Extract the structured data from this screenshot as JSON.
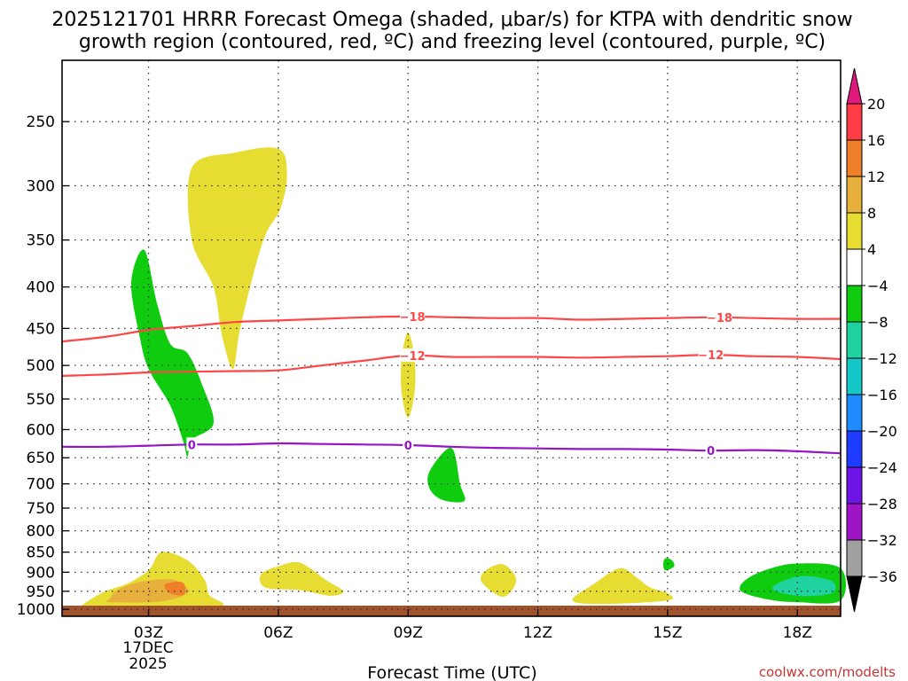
{
  "chart_data": {
    "type": "time-height cross section (filled contour + line contours)",
    "title_line1": "2025121701 HRRR Forecast Omega (shaded, μbar/s) for KTPA with dendritic snow",
    "title_line2": "growth region (contoured, red, ºC) and freezing level (contoured, purple, ºC)",
    "xlabel": "Forecast Time (UTC)",
    "ylabel": "",
    "credit": "coolwx.com/modelts",
    "x_ticks": [
      {
        "hour": 3,
        "label": "03Z"
      },
      {
        "hour": 6,
        "label": "06Z"
      },
      {
        "hour": 9,
        "label": "09Z"
      },
      {
        "hour": 12,
        "label": "12Z"
      },
      {
        "hour": 15,
        "label": "15Z"
      },
      {
        "hour": 18,
        "label": "18Z"
      }
    ],
    "x_sub_labels": [
      "17DEC",
      "2025"
    ],
    "xlim_hours": [
      1,
      19
    ],
    "y_ticks": [
      250,
      300,
      350,
      400,
      450,
      500,
      550,
      600,
      650,
      700,
      750,
      800,
      850,
      900,
      950,
      1000
    ],
    "ylim_hPa": [
      1020,
      210
    ],
    "y_scale": "log-pressure",
    "colorbar": {
      "levels": [
        "20",
        "16",
        "12",
        "8",
        "4",
        "-4",
        "-8",
        "-12",
        "-16",
        "-20",
        "-24",
        "-28",
        "-32",
        "-36"
      ],
      "colors": [
        "#ff3c46",
        "#f07f2a",
        "#e7b03c",
        "#e6dc32",
        "#ffffff",
        "#0fcc0f",
        "#1fd2a0",
        "#14c8c8",
        "#1e8cff",
        "#1e3cff",
        "#6e14e6",
        "#a014c8",
        "#a0a0a0"
      ],
      "top_arrow": "#e01a7c",
      "bottom_arrow": "#000000"
    },
    "contours": [
      {
        "name": "-18 °C isotherm",
        "color": "#ff4646",
        "label": "-18",
        "label_hours": [
          9.1,
          16.2
        ],
        "points": [
          [
            1,
            467
          ],
          [
            2,
            461
          ],
          [
            3,
            452
          ],
          [
            4,
            447
          ],
          [
            5,
            442
          ],
          [
            6,
            440
          ],
          [
            7,
            438
          ],
          [
            8,
            436
          ],
          [
            9,
            435
          ],
          [
            10,
            436
          ],
          [
            11,
            437
          ],
          [
            12,
            437
          ],
          [
            13,
            439
          ],
          [
            14,
            438
          ],
          [
            15,
            437
          ],
          [
            16,
            436
          ],
          [
            17,
            437
          ],
          [
            18,
            438
          ],
          [
            19,
            438
          ]
        ]
      },
      {
        "name": "-12 °C isotherm",
        "color": "#ff4646",
        "label": "-12",
        "label_hours": [
          9.1,
          16.0
        ],
        "points": [
          [
            1,
            515
          ],
          [
            2,
            513
          ],
          [
            3,
            510
          ],
          [
            4,
            509
          ],
          [
            5,
            508
          ],
          [
            6,
            507
          ],
          [
            7,
            500
          ],
          [
            8,
            493
          ],
          [
            9,
            486
          ],
          [
            10,
            488
          ],
          [
            11,
            488
          ],
          [
            12,
            488
          ],
          [
            13,
            489
          ],
          [
            14,
            488
          ],
          [
            15,
            487
          ],
          [
            16,
            485
          ],
          [
            17,
            487
          ],
          [
            18,
            488
          ],
          [
            19,
            491
          ]
        ]
      },
      {
        "name": "0 °C freezing level",
        "color": "#9614c8",
        "label": "0",
        "label_hours": [
          4.0,
          9.0,
          16.0
        ],
        "points": [
          [
            1,
            630
          ],
          [
            2,
            630
          ],
          [
            3,
            628
          ],
          [
            4,
            626
          ],
          [
            5,
            626
          ],
          [
            6,
            624
          ],
          [
            7,
            625
          ],
          [
            8,
            626
          ],
          [
            9,
            627
          ],
          [
            10,
            630
          ],
          [
            11,
            632
          ],
          [
            12,
            633
          ],
          [
            13,
            634
          ],
          [
            14,
            634
          ],
          [
            15,
            635
          ],
          [
            16,
            637
          ],
          [
            17,
            636
          ],
          [
            18,
            638
          ],
          [
            19,
            642
          ]
        ]
      }
    ],
    "omega_regions": [
      {
        "level": "4 to 8",
        "color": "#e6dc32",
        "points": [
          [
            1.5,
            985
          ],
          [
            2,
            950
          ],
          [
            2.5,
            930
          ],
          [
            3,
            895
          ],
          [
            3.3,
            850
          ],
          [
            3.9,
            870
          ],
          [
            4.3,
            920
          ],
          [
            4.4,
            960
          ],
          [
            4.7,
            990
          ],
          [
            3.5,
            1003
          ],
          [
            2,
            1000
          ],
          [
            1.5,
            995
          ]
        ]
      },
      {
        "level": "8 to 12",
        "color": "#e7b03c",
        "points": [
          [
            2.1,
            970
          ],
          [
            2.3,
            945
          ],
          [
            2.8,
            925
          ],
          [
            3.5,
            918
          ],
          [
            3.8,
            932
          ],
          [
            3.9,
            955
          ],
          [
            3.3,
            978
          ],
          [
            2.1,
            980
          ]
        ]
      },
      {
        "level": "12 to 16",
        "color": "#f07f2a",
        "points": [
          [
            3.4,
            930
          ],
          [
            3.75,
            925
          ],
          [
            3.85,
            940
          ],
          [
            3.8,
            960
          ],
          [
            3.55,
            958
          ],
          [
            3.4,
            945
          ]
        ]
      },
      {
        "level": "4 to 8",
        "color": "#e6dc32",
        "points": [
          [
            4.0,
            285
          ],
          [
            5.0,
            273
          ],
          [
            6.0,
            270
          ],
          [
            6.2,
            290
          ],
          [
            6.05,
            320
          ],
          [
            5.7,
            345
          ],
          [
            5.4,
            390
          ],
          [
            5.1,
            455
          ],
          [
            4.95,
            505
          ],
          [
            4.7,
            460
          ],
          [
            4.5,
            400
          ],
          [
            4.0,
            350
          ]
        ]
      },
      {
        "level": "4 to 8",
        "color": "#e6dc32",
        "points": [
          [
            6.0,
            885
          ],
          [
            6.5,
            876
          ],
          [
            7.1,
            920
          ],
          [
            7.5,
            950
          ],
          [
            7.2,
            962
          ],
          [
            6.5,
            947
          ],
          [
            5.7,
            940
          ],
          [
            5.6,
            905
          ]
        ]
      },
      {
        "level": "4 to 8",
        "color": "#e6dc32",
        "points": [
          [
            9.0,
            455
          ],
          [
            9.15,
            490
          ],
          [
            9.15,
            540
          ],
          [
            9.0,
            580
          ],
          [
            8.85,
            540
          ],
          [
            8.85,
            490
          ]
        ]
      },
      {
        "level": "4 to 8",
        "color": "#e6dc32",
        "points": [
          [
            11.2,
            880
          ],
          [
            11.5,
            920
          ],
          [
            11.2,
            965
          ],
          [
            10.7,
            925
          ],
          [
            10.8,
            895
          ]
        ]
      },
      {
        "level": "4 to 8",
        "color": "#e6dc32",
        "points": [
          [
            12.8,
            975
          ],
          [
            13.3,
            930
          ],
          [
            13.9,
            890
          ],
          [
            14.3,
            915
          ],
          [
            14.6,
            940
          ],
          [
            15.0,
            955
          ],
          [
            15.0,
            975
          ],
          [
            13.5,
            985
          ]
        ]
      },
      {
        "level": "-8 to -4",
        "color": "#0fcc0f",
        "points": [
          [
            2.6,
            395
          ],
          [
            2.9,
            360
          ],
          [
            3.2,
            420
          ],
          [
            3.5,
            470
          ],
          [
            3.9,
            483
          ],
          [
            4.25,
            530
          ],
          [
            4.5,
            590
          ],
          [
            4.0,
            618
          ],
          [
            3.9,
            648
          ],
          [
            3.8,
            620
          ],
          [
            3.5,
            560
          ],
          [
            3.0,
            505
          ],
          [
            2.8,
            462
          ]
        ]
      },
      {
        "level": "-8 to -4",
        "color": "#0fcc0f",
        "points": [
          [
            9.5,
            675
          ],
          [
            10.0,
            632
          ],
          [
            10.2,
            700
          ],
          [
            10.3,
            735
          ],
          [
            9.8,
            733
          ],
          [
            9.5,
            710
          ]
        ]
      },
      {
        "level": "-8 to -4",
        "color": "#0fcc0f",
        "points": [
          [
            14.95,
            865
          ],
          [
            15.1,
            870
          ],
          [
            15.15,
            885
          ],
          [
            14.95,
            895
          ],
          [
            14.9,
            880
          ]
        ]
      },
      {
        "level": "-8 to -4",
        "color": "#0fcc0f",
        "points": [
          [
            16.8,
            920
          ],
          [
            17.3,
            893
          ],
          [
            18.0,
            878
          ],
          [
            19.0,
            890
          ],
          [
            19.0,
            975
          ],
          [
            18.0,
            980
          ],
          [
            17.3,
            972
          ],
          [
            16.7,
            950
          ]
        ]
      },
      {
        "level": "-12 to -8",
        "color": "#1fd2a0",
        "points": [
          [
            17.5,
            932
          ],
          [
            18.1,
            910
          ],
          [
            18.8,
            923
          ],
          [
            18.8,
            955
          ],
          [
            18.1,
            963
          ],
          [
            17.5,
            950
          ]
        ]
      }
    ],
    "ground_color": "#a0522d"
  }
}
